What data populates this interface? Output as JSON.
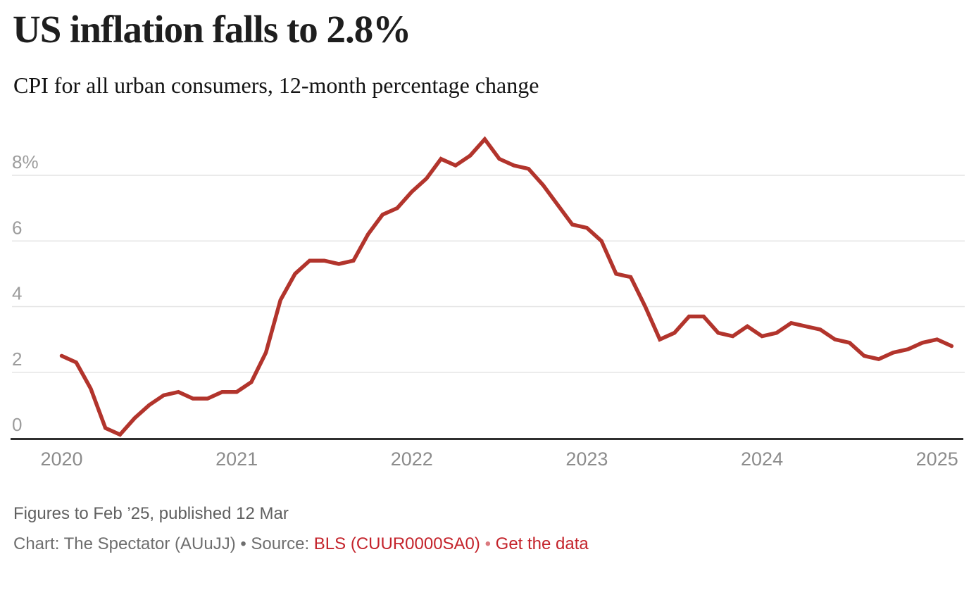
{
  "header": {
    "title": "US inflation falls to 2.8%",
    "subtitle": "CPI for all urban consumers, 12-month percentage change"
  },
  "footer": {
    "note": "Figures to Feb ’25, published 12 Mar",
    "attribution_prefix": "Chart: The Spectator (AUuJJ) • Source: ",
    "source_link": "BLS (CUUR0000SA0)",
    "separator": " • ",
    "data_link": "Get the data"
  },
  "chart_data": {
    "type": "line",
    "title": "US inflation falls to 2.8%",
    "subtitle": "CPI for all urban consumers, 12-month percentage change",
    "xlabel": "",
    "ylabel": "",
    "x_start": "2020-01",
    "x_end": "2025-02",
    "frequency": "monthly",
    "ylim": [
      0,
      9.4
    ],
    "grid": "horizontal",
    "legend": "none",
    "yticks": [
      {
        "value": 8,
        "label": "8%"
      },
      {
        "value": 6,
        "label": "6"
      },
      {
        "value": 4,
        "label": "4"
      },
      {
        "value": 2,
        "label": "2"
      },
      {
        "value": 0,
        "label": "0"
      }
    ],
    "xticks": [
      {
        "year": 2020,
        "label": "2020"
      },
      {
        "year": 2021,
        "label": "2021"
      },
      {
        "year": 2022,
        "label": "2022"
      },
      {
        "year": 2023,
        "label": "2023"
      },
      {
        "year": 2024,
        "label": "2024"
      },
      {
        "year": 2025,
        "label": "2025"
      }
    ],
    "series": [
      {
        "name": "CPI for all urban consumers, 12-month percentage change",
        "color": "#b2342c",
        "values": [
          2.5,
          2.3,
          1.5,
          0.3,
          0.1,
          0.6,
          1.0,
          1.3,
          1.4,
          1.2,
          1.2,
          1.4,
          1.4,
          1.7,
          2.6,
          4.2,
          5.0,
          5.4,
          5.4,
          5.3,
          5.4,
          6.2,
          6.8,
          7.0,
          7.5,
          7.9,
          8.5,
          8.3,
          8.6,
          9.1,
          8.5,
          8.3,
          8.2,
          7.7,
          7.1,
          6.5,
          6.4,
          6.0,
          5.0,
          4.9,
          4.0,
          3.0,
          3.2,
          3.7,
          3.7,
          3.2,
          3.1,
          3.4,
          3.1,
          3.2,
          3.5,
          3.4,
          3.3,
          3.0,
          2.9,
          2.5,
          2.4,
          2.6,
          2.7,
          2.9,
          3.0,
          2.8
        ]
      }
    ],
    "colors": {
      "line": "#b2342c",
      "grid": "#e4e4e4",
      "axis": "#2f2f2f",
      "tick_label": "#9c9c9c",
      "year_label": "#8c8c8c",
      "link": "#c4232b"
    }
  }
}
